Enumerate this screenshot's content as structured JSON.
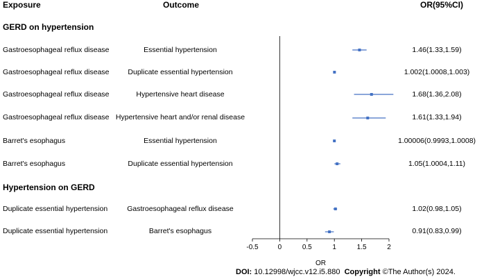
{
  "headers": {
    "exposure": "Exposure",
    "outcome": "Outcome",
    "or": "OR(95%CI)"
  },
  "sections": [
    {
      "title": "GERD on hypertension"
    },
    {
      "title": "Hypertension on GERD"
    }
  ],
  "rows": [
    {
      "exposure": "Gastroesophageal reflux disease",
      "outcome": "Essential hypertension",
      "or_text": "1.46(1.33,1.59)"
    },
    {
      "exposure": "Gastroesophageal reflux disease",
      "outcome": "Duplicate essential hypertension",
      "or_text": "1.002(1.0008,1.003)"
    },
    {
      "exposure": "Gastroesophageal reflux disease",
      "outcome": "Hypertensive heart disease",
      "or_text": "1.68(1.36,2.08)"
    },
    {
      "exposure": "Gastroesophageal reflux disease",
      "outcome": "Hypertensive heart and/or renal disease",
      "or_text": "1.61(1.33,1.94)"
    },
    {
      "exposure": "Barret's esophagus",
      "outcome": "Essential hypertension",
      "or_text": "1.00006(0.9993,1.0008)"
    },
    {
      "exposure": "Barret's esophagus",
      "outcome": "Duplicate essential hypertension",
      "or_text": "1.05(1.0004,1.11)"
    },
    {
      "exposure": "Duplicate essential hypertension",
      "outcome": "Gastroesophageal reflux disease",
      "or_text": "1.02(0.98,1.05)"
    },
    {
      "exposure": "Duplicate essential hypertension",
      "outcome": "Barret's esophagus",
      "or_text": "0.91(0.83,0.99)"
    }
  ],
  "footer": {
    "doi_label": "DOI:",
    "doi_value": "10.12998/wjcc.v12.i5.880",
    "copyright_label": "Copyright",
    "copyright_value": "©The Author(s) 2024."
  },
  "colors": {
    "marker": "#4472C4",
    "axis": "#000000"
  },
  "chart_data": {
    "type": "forest",
    "xlabel": "OR",
    "xlim": [
      -0.5,
      2
    ],
    "ticks": [
      -0.5,
      0,
      0.5,
      1,
      1.5,
      2
    ],
    "tick_labels": [
      "-0.5",
      "0",
      "0.5",
      "1",
      "1.5",
      "2"
    ],
    "reference_line": 0,
    "estimates": [
      {
        "or": 1.46,
        "lower": 1.33,
        "upper": 1.59
      },
      {
        "or": 1.002,
        "lower": 1.0008,
        "upper": 1.003
      },
      {
        "or": 1.68,
        "lower": 1.36,
        "upper": 2.08
      },
      {
        "or": 1.61,
        "lower": 1.33,
        "upper": 1.94
      },
      {
        "or": 1.00006,
        "lower": 0.9993,
        "upper": 1.0008
      },
      {
        "or": 1.05,
        "lower": 1.0004,
        "upper": 1.11
      },
      {
        "or": 1.02,
        "lower": 0.98,
        "upper": 1.05
      },
      {
        "or": 0.91,
        "lower": 0.83,
        "upper": 0.99
      }
    ]
  }
}
